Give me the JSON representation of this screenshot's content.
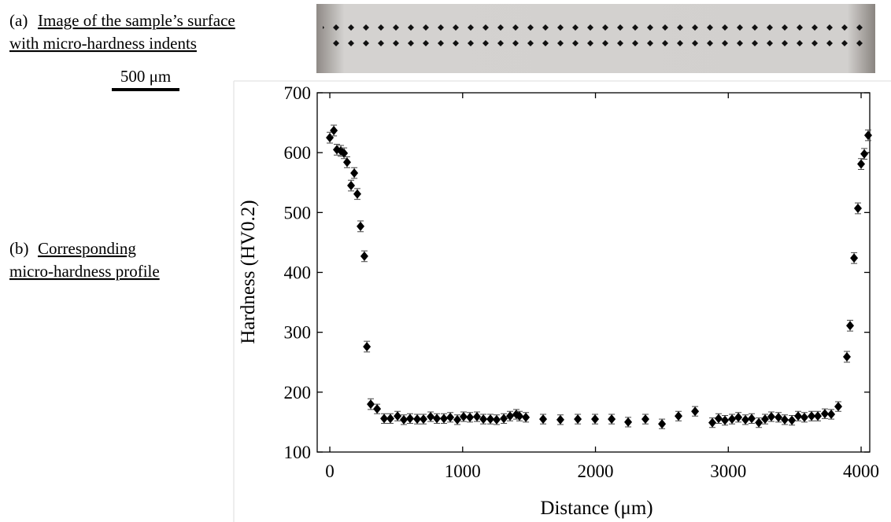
{
  "chart_data": {
    "type": "scatter",
    "annotations": [
      "(a)",
      "Image of the sample’s surface",
      "with micro-hardness indents",
      "500 μm",
      "(b)",
      "Corresponding",
      "micro-hardness profile"
    ],
    "xlabel": "Distance (μm)",
    "ylabel": "Hardness (HV0.2)",
    "xlim": [
      -95,
      4065
    ],
    "ylim": [
      100,
      700
    ],
    "xticks": [
      0,
      1000,
      2000,
      3000,
      4000
    ],
    "yticks": [
      100,
      200,
      300,
      400,
      500,
      600,
      700
    ],
    "color": "#000000",
    "x": [
      0,
      30,
      53,
      83,
      107,
      130,
      160,
      184,
      207,
      231,
      260,
      279,
      308,
      356,
      409,
      456,
      510,
      557,
      604,
      658,
      705,
      759,
      806,
      859,
      907,
      960,
      1007,
      1055,
      1108,
      1156,
      1209,
      1256,
      1310,
      1357,
      1404,
      1428,
      1476,
      1606,
      1736,
      1867,
      1997,
      2122,
      2246,
      2376,
      2501,
      2625,
      2750,
      2880,
      2927,
      2975,
      3028,
      3076,
      3129,
      3176,
      3230,
      3277,
      3324,
      3378,
      3425,
      3479,
      3526,
      3573,
      3627,
      3674,
      3727,
      3775,
      3828,
      3893,
      3917,
      3947,
      3976,
      4000,
      4024,
      4053
    ],
    "values": [
      625,
      637,
      605,
      603,
      599,
      584,
      545,
      566,
      531,
      477,
      427,
      276,
      180,
      172,
      156,
      156,
      160,
      154,
      156,
      155,
      155,
      159,
      156,
      156,
      158,
      154,
      159,
      158,
      159,
      155,
      155,
      154,
      156,
      160,
      163,
      160,
      158,
      155,
      154,
      155,
      155,
      155,
      150,
      155,
      147,
      160,
      168,
      149,
      156,
      153,
      155,
      158,
      154,
      156,
      149,
      155,
      159,
      158,
      154,
      153,
      160,
      158,
      160,
      160,
      164,
      163,
      176,
      259,
      311,
      424,
      507,
      581,
      598,
      629
    ],
    "errors": [
      9,
      9,
      9,
      9,
      9,
      9,
      9,
      9,
      9,
      9,
      9,
      9,
      9,
      8,
      8,
      8,
      8,
      8,
      8,
      8,
      8,
      8,
      8,
      8,
      8,
      8,
      8,
      8,
      8,
      8,
      8,
      8,
      8,
      8,
      8,
      8,
      8,
      8,
      8,
      8,
      8,
      8,
      8,
      8,
      8,
      8,
      8,
      8,
      8,
      8,
      8,
      8,
      8,
      8,
      8,
      8,
      8,
      8,
      8,
      8,
      8,
      8,
      8,
      8,
      8,
      8,
      8,
      9,
      9,
      9,
      9,
      9,
      9,
      9
    ]
  }
}
